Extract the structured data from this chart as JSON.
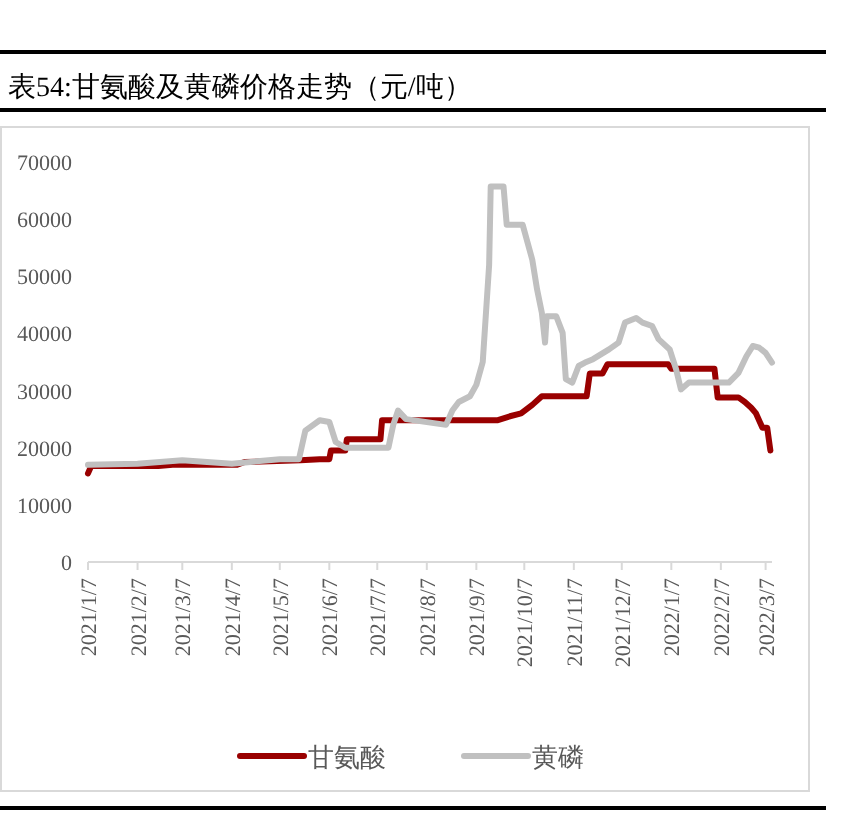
{
  "chart_data": {
    "type": "line",
    "title": "表54:甘氨酸及黄磷价格走势（元/吨）",
    "xlim": [
      "2021-01-07",
      "2022-03-11"
    ],
    "xticks": [
      {
        "value": "2021-01-07",
        "label": "2021/1/7"
      },
      {
        "value": "2021-02-07",
        "label": "2021/2/7"
      },
      {
        "value": "2021-03-07",
        "label": "2021/3/7"
      },
      {
        "value": "2021-04-07",
        "label": "2021/4/7"
      },
      {
        "value": "2021-05-07",
        "label": "2021/5/7"
      },
      {
        "value": "2021-06-07",
        "label": "2021/6/7"
      },
      {
        "value": "2021-07-07",
        "label": "2021/7/7"
      },
      {
        "value": "2021-08-07",
        "label": "2021/8/7"
      },
      {
        "value": "2021-09-07",
        "label": "2021/9/7"
      },
      {
        "value": "2021-10-07",
        "label": "2021/10/7"
      },
      {
        "value": "2021-11-07",
        "label": "2021/11/7"
      },
      {
        "value": "2021-12-07",
        "label": "2021/12/7"
      },
      {
        "value": "2022-01-07",
        "label": "2022/1/7"
      },
      {
        "value": "2022-02-07",
        "label": "2022/2/7"
      },
      {
        "value": "2022-03-07",
        "label": "2022/3/7"
      }
    ],
    "ylim": [
      0,
      70000
    ],
    "yticks": [
      0,
      10000,
      20000,
      30000,
      40000,
      50000,
      60000,
      70000
    ],
    "legend": "bottom",
    "grid": false,
    "marker": "none",
    "line_style": "solid",
    "series": [
      {
        "name": "甘氨酸",
        "color": "#990000",
        "x": [
          "2021-01-07",
          "2021-01-09",
          "2021-02-20",
          "2021-03-01",
          "2021-04-10",
          "2021-04-15",
          "2021-05-20",
          "2021-06-01",
          "2021-06-07",
          "2021-06-08",
          "2021-06-17",
          "2021-06-18",
          "2021-07-09",
          "2021-07-10",
          "2021-09-20",
          "2021-09-28",
          "2021-10-05",
          "2021-10-12",
          "2021-10-18",
          "2021-11-15",
          "2021-11-17",
          "2021-11-25",
          "2021-11-28",
          "2022-01-05",
          "2022-01-07",
          "2022-02-03",
          "2022-02-05",
          "2022-02-18",
          "2022-02-22",
          "2022-02-26",
          "2022-03-01",
          "2022-03-05",
          "2022-03-08",
          "2022-03-10"
        ],
        "values": [
          15500,
          16800,
          16800,
          17000,
          17000,
          17500,
          17800,
          18000,
          18000,
          19500,
          19500,
          21500,
          21500,
          24800,
          24800,
          25500,
          26000,
          27500,
          29000,
          29000,
          33000,
          33000,
          34600,
          34600,
          33800,
          33800,
          28800,
          28800,
          28000,
          27000,
          26000,
          23500,
          23500,
          19500
        ]
      },
      {
        "name": "黄磷",
        "color": "#c0c0c0",
        "x": [
          "2021-01-07",
          "2021-02-07",
          "2021-03-07",
          "2021-04-07",
          "2021-05-07",
          "2021-05-19",
          "2021-05-23",
          "2021-06-01",
          "2021-06-07",
          "2021-06-11",
          "2021-06-17",
          "2021-07-14",
          "2021-07-17",
          "2021-07-20",
          "2021-07-25",
          "2021-08-19",
          "2021-08-23",
          "2021-08-27",
          "2021-09-03",
          "2021-09-07",
          "2021-09-11",
          "2021-09-15",
          "2021-09-16",
          "2021-09-24",
          "2021-09-26",
          "2021-10-06",
          "2021-10-12",
          "2021-10-15",
          "2021-10-18",
          "2021-10-20",
          "2021-10-21",
          "2021-10-27",
          "2021-10-31",
          "2021-11-02",
          "2021-11-06",
          "2021-11-10",
          "2021-11-14",
          "2021-11-19",
          "2021-11-29",
          "2021-12-05",
          "2021-12-09",
          "2021-12-16",
          "2021-12-20",
          "2021-12-26",
          "2021-12-30",
          "2022-01-06",
          "2022-01-10",
          "2022-01-13",
          "2022-01-18",
          "2022-02-12",
          "2022-02-18",
          "2022-02-23",
          "2022-02-27",
          "2022-03-03",
          "2022-03-07",
          "2022-03-11"
        ],
        "values": [
          17000,
          17200,
          17800,
          17200,
          18000,
          18000,
          23000,
          24800,
          24500,
          21000,
          20000,
          20000,
          24000,
          26500,
          25000,
          24000,
          26500,
          28000,
          29000,
          31000,
          35000,
          52000,
          65700,
          65700,
          59000,
          59000,
          52900,
          47700,
          43600,
          38400,
          43000,
          43000,
          40100,
          32000,
          31400,
          34300,
          34900,
          35500,
          37200,
          38400,
          41900,
          42700,
          41900,
          41300,
          39000,
          37200,
          33700,
          30200,
          31400,
          31400,
          33100,
          36000,
          37800,
          37500,
          36600,
          34900
        ]
      }
    ]
  }
}
